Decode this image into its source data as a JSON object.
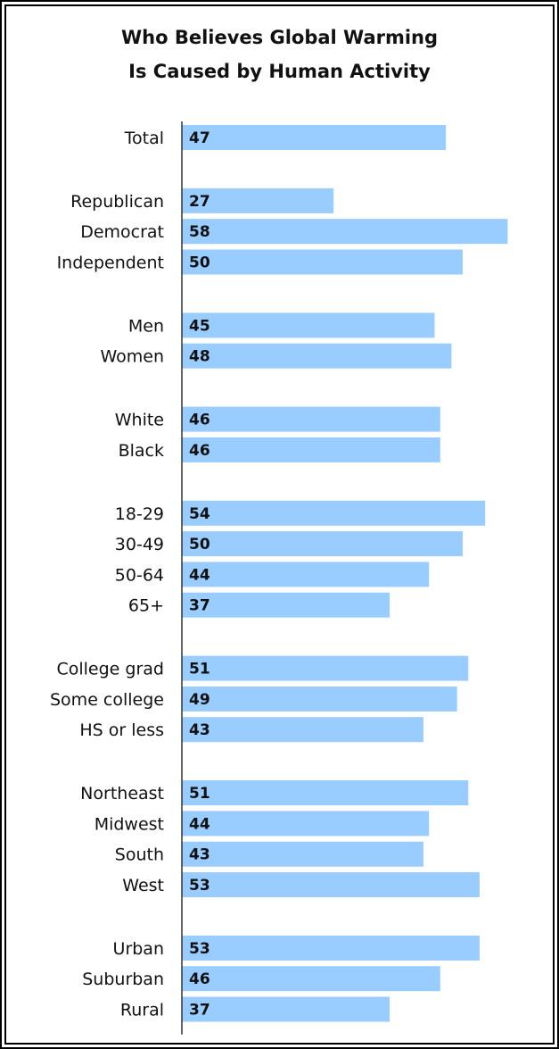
{
  "chart_data": {
    "type": "bar",
    "orientation": "horizontal",
    "title_lines": [
      "Who Believes Global Warming",
      "Is Caused by Human Activity"
    ],
    "groups": [
      {
        "categories": [
          "Total"
        ],
        "values": [
          47
        ]
      },
      {
        "categories": [
          "Republican",
          "Democrat",
          "Independent"
        ],
        "values": [
          27,
          58,
          50
        ]
      },
      {
        "categories": [
          "Men",
          "Women"
        ],
        "values": [
          45,
          48
        ]
      },
      {
        "categories": [
          "White",
          "Black"
        ],
        "values": [
          46,
          46
        ]
      },
      {
        "categories": [
          "18-29",
          "30-49",
          "50-64",
          "65+"
        ],
        "values": [
          54,
          50,
          44,
          37
        ]
      },
      {
        "categories": [
          "College grad",
          "Some college",
          "HS or less"
        ],
        "values": [
          51,
          49,
          43
        ]
      },
      {
        "categories": [
          "Northeast",
          "Midwest",
          "South",
          "West"
        ],
        "values": [
          51,
          44,
          43,
          53
        ]
      },
      {
        "categories": [
          "Urban",
          "Suburban",
          "Rural"
        ],
        "values": [
          53,
          46,
          37
        ]
      }
    ],
    "xlim": [
      0,
      60
    ],
    "bar_color": "#99ccff",
    "axis_color": "#333333",
    "grid": false,
    "legend": "none"
  }
}
